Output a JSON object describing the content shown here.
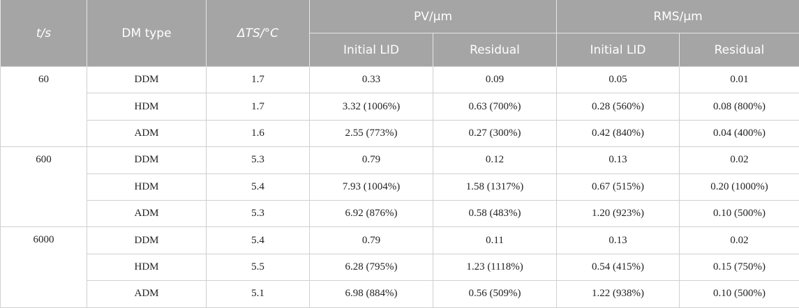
{
  "table": {
    "header": {
      "t": "t/s",
      "dm_type": "DM type",
      "delta_t": "ΔTS/°C",
      "pv": "PV/μm",
      "rms": "RMS/μm",
      "pv_initial": "Initial LID",
      "pv_residual": "Residual",
      "rms_initial": "Initial LID",
      "rms_residual": "Residual"
    },
    "groups": [
      {
        "t": "60",
        "rows": [
          [
            "DDM",
            "1.7",
            "0.33",
            "0.09",
            "0.05",
            "0.01"
          ],
          [
            "HDM",
            "1.7",
            "3.32 (1006%)",
            "0.63 (700%)",
            "0.28 (560%)",
            "0.08 (800%)"
          ],
          [
            "ADM",
            "1.6",
            "2.55 (773%)",
            "0.27 (300%)",
            "0.42 (840%)",
            "0.04 (400%)"
          ]
        ]
      },
      {
        "t": "600",
        "rows": [
          [
            "DDM",
            "5.3",
            "0.79",
            "0.12",
            "0.13",
            "0.02"
          ],
          [
            "HDM",
            "5.4",
            "7.93 (1004%)",
            "1.58 (1317%)",
            "0.67 (515%)",
            "0.20 (1000%)"
          ],
          [
            "ADM",
            "5.3",
            "6.92 (876%)",
            "0.58 (483%)",
            "1.20 (923%)",
            "0.10 (500%)"
          ]
        ]
      },
      {
        "t": "6000",
        "rows": [
          [
            "DDM",
            "5.4",
            "0.79",
            "0.11",
            "0.13",
            "0.02"
          ],
          [
            "HDM",
            "5.5",
            "6.28 (795%)",
            "1.23 (1118%)",
            "0.54 (415%)",
            "0.15 (750%)"
          ],
          [
            "ADM",
            "5.1",
            "6.98 (884%)",
            "0.56 (509%)",
            "1.22 (938%)",
            "0.10 (500%)"
          ]
        ]
      }
    ]
  }
}
